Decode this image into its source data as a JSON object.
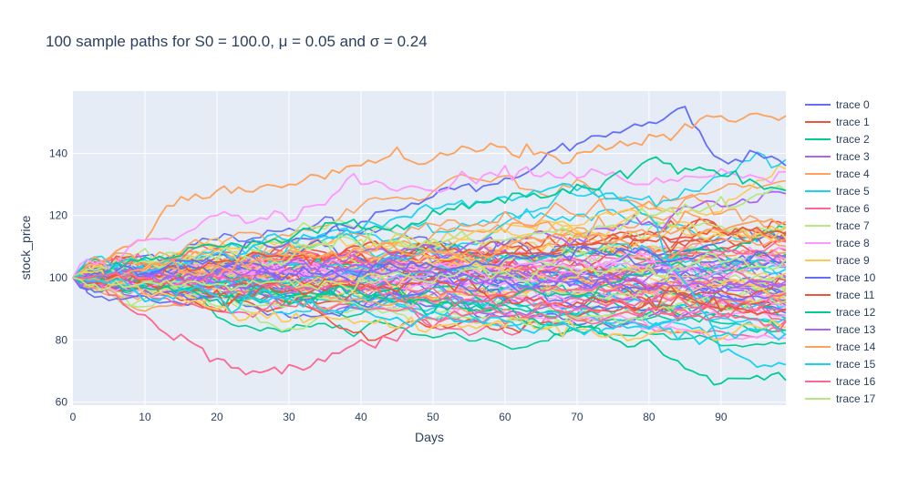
{
  "chart_data": {
    "type": "line",
    "title": "100 sample paths for S0 = 100.0, μ = 0.05 and σ = 0.24",
    "xlabel": "Days",
    "ylabel": "stock_price",
    "xlim": [
      0,
      99
    ],
    "ylim": [
      59,
      160
    ],
    "x_ticks": [
      0,
      10,
      20,
      30,
      40,
      50,
      60,
      70,
      80,
      90
    ],
    "y_ticks": [
      60,
      80,
      100,
      120,
      140
    ],
    "grid": true,
    "legend_position": "right",
    "n_days": 100,
    "palette": [
      "#636efa",
      "#EF553B",
      "#00cc96",
      "#ab63fa",
      "#FFA15A",
      "#19d3f3",
      "#FF6692",
      "#B6E880",
      "#FF97FF",
      "#FECB52"
    ],
    "plot_background": "#e5ecf6",
    "series": [
      {
        "name": "trace 0",
        "x": [
          0,
          20,
          40,
          50,
          60,
          70,
          80,
          85,
          90,
          95,
          99
        ],
        "values": [
          100,
          104,
          118,
          126,
          132,
          143,
          150,
          155,
          138,
          140,
          136
        ]
      },
      {
        "name": "trace 1",
        "x": [
          0,
          20,
          40,
          60,
          80,
          99
        ],
        "values": [
          100,
          105,
          110,
          108,
          112,
          114
        ]
      },
      {
        "name": "trace 2",
        "x": [
          0,
          20,
          40,
          60,
          80,
          90,
          99
        ],
        "values": [
          100,
          93,
          95,
          88,
          80,
          66,
          67
        ]
      },
      {
        "name": "trace 3",
        "x": [
          0,
          20,
          40,
          60,
          80,
          99
        ],
        "values": [
          100,
          102,
          108,
          112,
          118,
          127
        ]
      },
      {
        "name": "trace 4",
        "x": [
          0,
          10,
          15,
          20,
          30,
          40,
          50,
          60,
          70,
          80,
          90,
          99
        ],
        "values": [
          100,
          112,
          126,
          128,
          130,
          136,
          138,
          142,
          140,
          146,
          152,
          152
        ]
      },
      {
        "name": "trace 5",
        "x": [
          0,
          20,
          40,
          50,
          60,
          70,
          80,
          90,
          99
        ],
        "values": [
          100,
          108,
          115,
          122,
          126,
          128,
          120,
          76,
          72
        ]
      },
      {
        "name": "trace 6",
        "x": [
          0,
          10,
          20,
          25,
          30,
          40,
          50,
          60,
          70,
          80,
          90,
          99
        ],
        "values": [
          100,
          88,
          74,
          70,
          72,
          80,
          84,
          88,
          90,
          92,
          88,
          95
        ]
      },
      {
        "name": "trace 7",
        "x": [
          0,
          20,
          40,
          60,
          80,
          90,
          99
        ],
        "values": [
          100,
          106,
          110,
          112,
          120,
          126,
          128
        ]
      },
      {
        "name": "trace 8",
        "x": [
          0,
          10,
          20,
          30,
          40,
          50,
          60,
          70,
          80,
          90,
          99
        ],
        "values": [
          100,
          112,
          120,
          118,
          130,
          128,
          136,
          132,
          130,
          135,
          134
        ]
      },
      {
        "name": "trace 9",
        "x": [
          0,
          20,
          40,
          60,
          80,
          99
        ],
        "values": [
          100,
          90,
          86,
          84,
          82,
          84
        ]
      },
      {
        "name": "trace 10",
        "x": [
          0,
          20,
          40,
          60,
          80,
          99
        ],
        "values": [
          100,
          104,
          102,
          106,
          108,
          105
        ]
      },
      {
        "name": "trace 11",
        "x": [
          0,
          20,
          40,
          60,
          80,
          99
        ],
        "values": [
          100,
          96,
          98,
          94,
          92,
          90
        ]
      },
      {
        "name": "trace 12",
        "x": [
          0,
          20,
          40,
          60,
          70,
          80,
          99
        ],
        "values": [
          100,
          110,
          116,
          124,
          130,
          138,
          128
        ]
      },
      {
        "name": "trace 13",
        "x": [
          0,
          20,
          40,
          60,
          80,
          99
        ],
        "values": [
          100,
          98,
          104,
          100,
          96,
          98
        ]
      },
      {
        "name": "trace 14",
        "x": [
          0,
          20,
          40,
          60,
          80,
          99
        ],
        "values": [
          100,
          104,
          108,
          110,
          114,
          118
        ]
      },
      {
        "name": "trace 15",
        "x": [
          0,
          20,
          40,
          60,
          80,
          99
        ],
        "values": [
          100,
          94,
          90,
          86,
          84,
          82
        ]
      },
      {
        "name": "trace 16",
        "x": [
          0,
          20,
          40,
          60,
          80,
          99
        ],
        "values": [
          100,
          100,
          96,
          92,
          90,
          86
        ]
      },
      {
        "name": "trace 17",
        "x": [
          0,
          20,
          40,
          60,
          80,
          99
        ],
        "values": [
          100,
          98,
          100,
          102,
          104,
          106
        ]
      }
    ]
  }
}
